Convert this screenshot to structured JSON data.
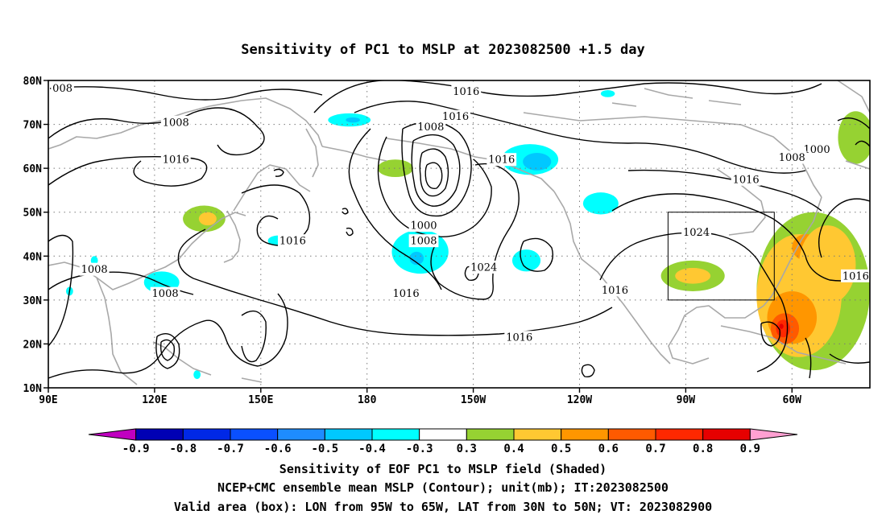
{
  "title": "Sensitivity of PC1 to MSLP at 2023082500 +1.5 day",
  "map": {
    "lon_ticks": [
      {
        "label": "90E",
        "lon": 90
      },
      {
        "label": "120E",
        "lon": 120
      },
      {
        "label": "150E",
        "lon": 150
      },
      {
        "label": "180",
        "lon": 180
      },
      {
        "label": "150W",
        "lon": 210
      },
      {
        "label": "120W",
        "lon": 240
      },
      {
        "label": "90W",
        "lon": 270
      },
      {
        "label": "60W",
        "lon": 300
      }
    ],
    "lat_ticks": [
      {
        "label": "80N",
        "lat": 80
      },
      {
        "label": "70N",
        "lat": 70
      },
      {
        "label": "60N",
        "lat": 60
      },
      {
        "label": "50N",
        "lat": 50
      },
      {
        "label": "40N",
        "lat": 40
      },
      {
        "label": "30N",
        "lat": 30
      },
      {
        "label": "20N",
        "lat": 20
      },
      {
        "label": "10N",
        "lat": 10
      }
    ],
    "extent": {
      "lon_min": 90,
      "lon_max": 322,
      "lat_min": 10,
      "lat_max": 80
    },
    "gridlines": "dotted",
    "valid_box": {
      "lon_min": 265,
      "lon_max": 295,
      "lat_min": 30,
      "lat_max": 50
    },
    "contour_labels": [
      {
        "text": "008",
        "lon": 94,
        "lat": 78.3
      },
      {
        "text": "1016",
        "lon": 208,
        "lat": 77.5
      },
      {
        "text": "1016",
        "lon": 205,
        "lat": 71.8
      },
      {
        "text": "1008",
        "lon": 126,
        "lat": 70.5
      },
      {
        "text": "1008",
        "lon": 198,
        "lat": 69.5
      },
      {
        "text": "1000",
        "lon": 307,
        "lat": 64.3
      },
      {
        "text": "1008",
        "lon": 300,
        "lat": 62.5
      },
      {
        "text": "1016",
        "lon": 126,
        "lat": 62.0
      },
      {
        "text": "1016",
        "lon": 218,
        "lat": 62.0
      },
      {
        "text": "1016",
        "lon": 287,
        "lat": 57.5
      },
      {
        "text": "1000",
        "lon": 196,
        "lat": 47.0
      },
      {
        "text": "1024",
        "lon": 273,
        "lat": 45.5
      },
      {
        "text": "1016",
        "lon": 159,
        "lat": 43.5
      },
      {
        "text": "1008",
        "lon": 196,
        "lat": 43.5
      },
      {
        "text": "1024",
        "lon": 213,
        "lat": 37.5
      },
      {
        "text": "1008",
        "lon": 103,
        "lat": 37.0
      },
      {
        "text": "1016",
        "lon": 318,
        "lat": 35.5
      },
      {
        "text": "1016",
        "lon": 191,
        "lat": 31.5
      },
      {
        "text": "1016",
        "lon": 250,
        "lat": 32.3
      },
      {
        "text": "1008",
        "lon": 123,
        "lat": 31.5
      },
      {
        "text": "1016",
        "lon": 223,
        "lat": 21.5
      }
    ],
    "shaded_patches": [
      {
        "lon": 175,
        "lat": 71,
        "rx": 6,
        "ry": 1.5,
        "value": -0.4
      },
      {
        "lon": 176,
        "lat": 71,
        "rx": 2,
        "ry": 0.6,
        "value": -0.5
      },
      {
        "lon": 226,
        "lat": 62,
        "rx": 8,
        "ry": 3.5,
        "value": -0.4
      },
      {
        "lon": 228,
        "lat": 61.5,
        "rx": 4,
        "ry": 2,
        "value": -0.5
      },
      {
        "lon": 188,
        "lat": 60,
        "rx": 5,
        "ry": 2,
        "value": 0.3
      },
      {
        "lon": 195,
        "lat": 41,
        "rx": 8,
        "ry": 5,
        "value": -0.4
      },
      {
        "lon": 194,
        "lat": 39.5,
        "rx": 2,
        "ry": 1.5,
        "value": -0.5
      },
      {
        "lon": 225,
        "lat": 39,
        "rx": 4,
        "ry": 2.5,
        "value": -0.4
      },
      {
        "lon": 155,
        "lat": 43.5,
        "rx": 3,
        "ry": 1.2,
        "value": -0.4
      },
      {
        "lon": 122,
        "lat": 34,
        "rx": 5,
        "ry": 2.5,
        "value": -0.4
      },
      {
        "lon": 103,
        "lat": 39,
        "rx": 1,
        "ry": 1,
        "value": -0.4
      },
      {
        "lon": 96,
        "lat": 32,
        "rx": 1,
        "ry": 1,
        "value": -0.4
      },
      {
        "lon": 134,
        "lat": 48.5,
        "rx": 6,
        "ry": 3,
        "value": 0.3
      },
      {
        "lon": 135,
        "lat": 48.5,
        "rx": 2.5,
        "ry": 1.5,
        "value": 0.4
      },
      {
        "lon": 246,
        "lat": 52,
        "rx": 5,
        "ry": 2.5,
        "value": -0.4
      },
      {
        "lon": 248,
        "lat": 77,
        "rx": 2,
        "ry": 0.8,
        "value": -0.4
      },
      {
        "lon": 318,
        "lat": 67,
        "rx": 5,
        "ry": 6,
        "value": 0.3
      },
      {
        "lon": 272,
        "lat": 35.5,
        "rx": 9,
        "ry": 3.5,
        "value": 0.3
      },
      {
        "lon": 272,
        "lat": 35.5,
        "rx": 5,
        "ry": 1.8,
        "value": 0.4
      },
      {
        "lon": 306,
        "lat": 32,
        "rx": 16,
        "ry": 18,
        "value": 0.3
      },
      {
        "lon": 302,
        "lat": 31,
        "rx": 12,
        "ry": 14,
        "value": 0.4
      },
      {
        "lon": 300,
        "lat": 26,
        "rx": 7,
        "ry": 6,
        "value": 0.5
      },
      {
        "lon": 298,
        "lat": 23.5,
        "rx": 4,
        "ry": 3.5,
        "value": 0.6
      },
      {
        "lon": 297.5,
        "lat": 23.5,
        "rx": 2,
        "ry": 2,
        "value": 0.7
      },
      {
        "lon": 297,
        "lat": 24,
        "rx": 0.6,
        "ry": 0.6,
        "value": 0.8
      },
      {
        "lon": 304,
        "lat": 42,
        "rx": 4,
        "ry": 3,
        "value": 0.5
      },
      {
        "lon": 310,
        "lat": 38,
        "rx": 8,
        "ry": 9,
        "value": 0.4
      },
      {
        "lon": 132,
        "lat": 13,
        "rx": 1,
        "ry": 1,
        "value": -0.4
      }
    ]
  },
  "colorbar": {
    "levels": [
      "-0.9",
      "-0.8",
      "-0.7",
      "-0.6",
      "-0.5",
      "-0.4",
      "-0.3",
      "0.3",
      "0.4",
      "0.5",
      "0.6",
      "0.7",
      "0.8",
      "0.9"
    ],
    "colors": [
      "#c000c0",
      "#0000b4",
      "#0028e6",
      "#0a50ff",
      "#1e8cff",
      "#00c8ff",
      "#00ffff",
      "#ffffff",
      "#96d232",
      "#ffc832",
      "#ff9600",
      "#ff5a00",
      "#ff2800",
      "#e60000",
      "#ffa0d2"
    ]
  },
  "captions": [
    "Sensitivity of EOF PC1 to MSLP field (Shaded)",
    "NCEP+CMC ensemble mean MSLP (Contour); unit(mb); IT:2023082500",
    "Valid area (box): LON from 95W to 65W, LAT from 30N to 50N; VT: 2023082900"
  ]
}
